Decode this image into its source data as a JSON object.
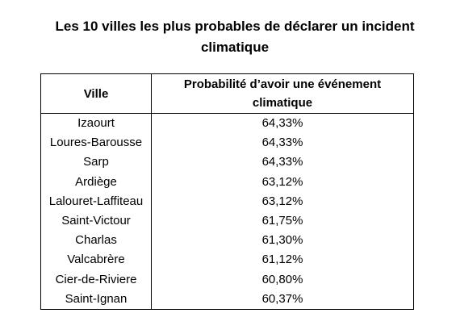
{
  "title_line1": "Les 10 villes les plus probables de déclarer un incident",
  "title_line2": "climatique",
  "table": {
    "headers": {
      "ville": "Ville",
      "prob_line1": "Probabilité d’avoir une événement",
      "prob_line2": "climatique"
    },
    "rows": [
      {
        "ville": "Izaourt",
        "prob": "64,33%"
      },
      {
        "ville": "Loures-Barousse",
        "prob": "64,33%"
      },
      {
        "ville": "Sarp",
        "prob": "64,33%"
      },
      {
        "ville": "Ardiège",
        "prob": "63,12%"
      },
      {
        "ville": "Lalouret-Laffiteau",
        "prob": "63,12%"
      },
      {
        "ville": "Saint-Victour",
        "prob": "61,75%"
      },
      {
        "ville": "Charlas",
        "prob": "61,30%"
      },
      {
        "ville": "Valcabrère",
        "prob": "61,12%"
      },
      {
        "ville": "Cier-de-Riviere",
        "prob": "60,80%"
      },
      {
        "ville": "Saint-Ignan",
        "prob": "60,37%"
      }
    ]
  }
}
